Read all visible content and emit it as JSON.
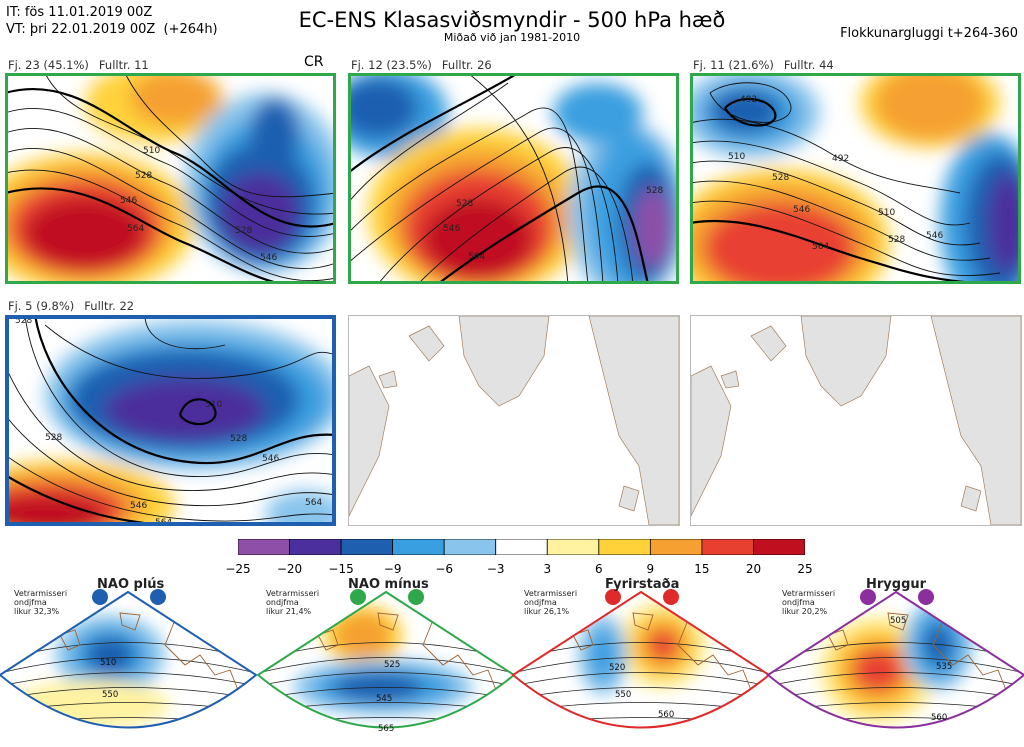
{
  "header": {
    "it_line": "IT: fös 11.01.2019 00Z",
    "vt_line": "VT: þri 22.01.2019 00Z  (+264h)",
    "title": "EC-ENS Klasasviðsmyndir - 500 hPa hæð",
    "subtitle": "Miðað við jan 1981-2010",
    "window_label": "Flokkunargluggi t+264-360"
  },
  "clusters": [
    {
      "label": "Fj. 23 (45.1%)",
      "members": "Fulltr. 11",
      "frame_color": "#2ea84a",
      "badge": "CR",
      "contour_labels": [
        "510",
        "528",
        "546",
        "564",
        "528",
        "546"
      ]
    },
    {
      "label": "Fj. 12 (23.5%)",
      "members": "Fulltr. 26",
      "frame_color": "#2ea84a",
      "badge": "",
      "contour_labels": [
        "528",
        "546",
        "564",
        "528"
      ]
    },
    {
      "label": "Fj. 11 (21.6%)",
      "members": "Fulltr. 44",
      "frame_color": "#2ea84a",
      "badge": "",
      "contour_labels": [
        "492",
        "492",
        "510",
        "528",
        "546",
        "564",
        "510",
        "528",
        "546"
      ]
    },
    {
      "label": "Fj. 5 (9.8%)",
      "members": "Fulltr. 22",
      "frame_color": "#1f5fb0",
      "badge": "",
      "contour_labels": [
        "528",
        "510",
        "528",
        "546",
        "564",
        "528",
        "546",
        "564"
      ]
    }
  ],
  "colorbar": {
    "colors": [
      "#8e4fa8",
      "#4b2f9c",
      "#1f5fb0",
      "#3a9fe0",
      "#88c4ec",
      "#ffffff",
      "#fff2a0",
      "#ffd23a",
      "#f5a030",
      "#e84030",
      "#c01020"
    ],
    "ticks": [
      "−25",
      "−20",
      "−15",
      "−9",
      "−6",
      "−3",
      "3",
      "6",
      "9",
      "15",
      "20",
      "25"
    ]
  },
  "regimes": [
    {
      "name": "NAO plús",
      "line1": "Vetrarmisseri",
      "line2": "ondjfma",
      "line3": "líkur 32,3%",
      "color": "#1f5fb0",
      "contour_labels": [
        "510",
        "550"
      ]
    },
    {
      "name": "NAO mínus",
      "line1": "Vetrarmisseri",
      "line2": "ondjfma",
      "line3": "líkur 21,4%",
      "color": "#2ea84a",
      "contour_labels": [
        "525",
        "545",
        "565"
      ]
    },
    {
      "name": "Fyrirstaða",
      "line1": "Vetrarmisseri",
      "line2": "ondjfma",
      "line3": "líkur 26,1%",
      "color": "#e02a2a",
      "contour_labels": [
        "520",
        "550",
        "560"
      ]
    },
    {
      "name": "Hryggur",
      "line1": "Vetrarmisseri",
      "line2": "ondjfma",
      "line3": "líkur 20,2%",
      "color": "#8b2f9e",
      "contour_labels": [
        "505",
        "535",
        "560"
      ]
    }
  ]
}
